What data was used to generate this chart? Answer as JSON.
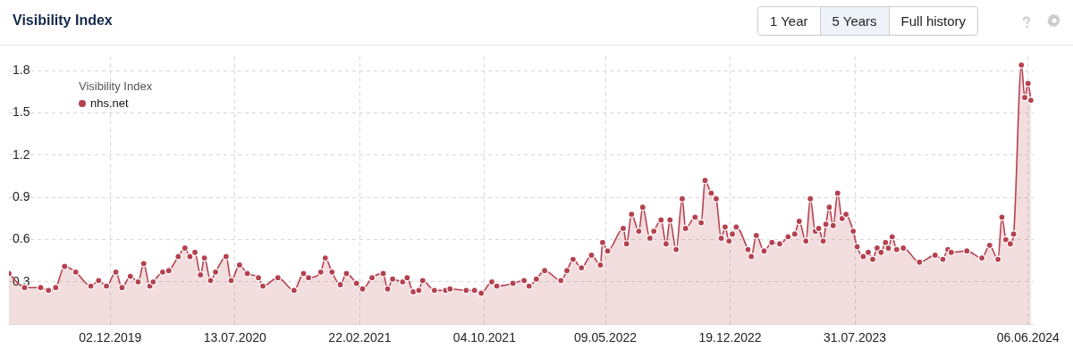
{
  "chart_data": {
    "type": "area",
    "title": "Visibility Index",
    "legend_title": "Visibility Index",
    "legend": "top left",
    "grid": true,
    "marker": "circle",
    "line_style": "solid",
    "annotations": [
      "1 Year",
      "5 Years",
      "Full history"
    ],
    "xlim": [
      "2019-06-03",
      "2024-06-16"
    ],
    "xticks": [
      {
        "value": "2019-12-02",
        "label": "02.12.2019"
      },
      {
        "value": "2020-07-13",
        "label": "13.07.2020"
      },
      {
        "value": "2021-02-22",
        "label": "22.02.2021"
      },
      {
        "value": "2021-10-04",
        "label": "04.10.2021"
      },
      {
        "value": "2022-05-09",
        "label": "09.05.2022"
      },
      {
        "value": "2022-12-19",
        "label": "19.12.2022"
      },
      {
        "value": "2023-07-31",
        "label": "31.07.2023"
      },
      {
        "value": "2024-06-06",
        "label": "06.06.2024"
      }
    ],
    "ylim": [
      0,
      1.9
    ],
    "yticks": [
      0.3,
      0.6,
      0.9,
      1.2,
      1.5,
      1.8
    ],
    "series": [
      {
        "name": "nhs.net",
        "color": "#b5414f",
        "x": [
          "2019-06-03",
          "2019-07-01",
          "2019-07-30",
          "2019-08-13",
          "2019-08-26",
          "2019-09-11",
          "2019-10-01",
          "2019-10-28",
          "2019-11-11",
          "2019-11-25",
          "2019-12-12",
          "2019-12-23",
          "2020-01-07",
          "2020-01-21",
          "2020-01-31",
          "2020-02-11",
          "2020-02-17",
          "2020-03-05",
          "2020-03-16",
          "2020-04-02",
          "2020-04-14",
          "2020-04-23",
          "2020-05-02",
          "2020-05-12",
          "2020-05-19",
          "2020-05-30",
          "2020-06-08",
          "2020-06-27",
          "2020-07-06",
          "2020-07-21",
          "2020-08-04",
          "2020-08-24",
          "2020-09-01",
          "2020-09-28",
          "2020-10-27",
          "2020-11-13",
          "2020-11-22",
          "2020-12-14",
          "2020-12-22",
          "2021-01-03",
          "2021-01-18",
          "2021-01-29",
          "2021-02-16",
          "2021-02-27",
          "2021-03-16",
          "2021-04-05",
          "2021-04-13",
          "2021-04-22",
          "2021-05-10",
          "2021-05-18",
          "2021-05-29",
          "2021-06-08",
          "2021-06-15",
          "2021-07-06",
          "2021-07-26",
          "2021-08-03",
          "2021-09-01",
          "2021-09-16",
          "2021-09-28",
          "2021-10-17",
          "2021-10-26",
          "2021-11-24",
          "2021-12-14",
          "2021-12-23",
          "2022-01-05",
          "2022-01-20",
          "2022-02-18",
          "2022-03-01",
          "2022-03-12",
          "2022-03-27",
          "2022-04-14",
          "2022-04-30",
          "2022-05-04",
          "2022-05-13",
          "2022-06-10",
          "2022-06-16",
          "2022-06-25",
          "2022-07-08",
          "2022-07-15",
          "2022-07-28",
          "2022-08-04",
          "2022-08-17",
          "2022-08-26",
          "2022-09-02",
          "2022-09-13",
          "2022-09-24",
          "2022-09-30",
          "2022-10-17",
          "2022-10-28",
          "2022-11-04",
          "2022-11-15",
          "2022-11-24",
          "2022-12-03",
          "2022-12-10",
          "2022-12-17",
          "2022-12-23",
          "2022-12-30",
          "2023-01-20",
          "2023-01-26",
          "2023-02-04",
          "2023-02-18",
          "2023-03-04",
          "2023-03-18",
          "2023-04-02",
          "2023-04-14",
          "2023-04-22",
          "2023-05-04",
          "2023-05-12",
          "2023-05-21",
          "2023-05-27",
          "2023-06-04",
          "2023-06-09",
          "2023-06-15",
          "2023-06-22",
          "2023-06-30",
          "2023-07-08",
          "2023-07-15",
          "2023-07-28",
          "2023-08-04",
          "2023-08-15",
          "2023-08-24",
          "2023-09-01",
          "2023-09-09",
          "2023-09-16",
          "2023-09-24",
          "2023-09-29",
          "2023-10-06",
          "2023-10-14",
          "2023-10-26",
          "2023-11-24",
          "2023-12-22",
          "2024-01-05",
          "2024-01-14",
          "2024-01-20",
          "2024-02-17",
          "2024-03-15",
          "2024-03-29",
          "2024-04-13",
          "2024-04-20",
          "2024-04-27",
          "2024-05-05",
          "2024-05-11",
          "2024-05-25",
          "2024-05-31",
          "2024-06-06",
          "2024-06-11"
        ],
        "values": [
          0.36,
          0.26,
          0.26,
          0.24,
          0.26,
          0.41,
          0.37,
          0.27,
          0.31,
          0.27,
          0.37,
          0.26,
          0.34,
          0.3,
          0.43,
          0.27,
          0.3,
          0.37,
          0.38,
          0.48,
          0.54,
          0.48,
          0.51,
          0.35,
          0.47,
          0.31,
          0.37,
          0.48,
          0.31,
          0.42,
          0.36,
          0.33,
          0.27,
          0.33,
          0.24,
          0.36,
          0.33,
          0.37,
          0.47,
          0.37,
          0.28,
          0.36,
          0.29,
          0.25,
          0.33,
          0.36,
          0.25,
          0.32,
          0.3,
          0.33,
          0.23,
          0.24,
          0.31,
          0.24,
          0.24,
          0.25,
          0.24,
          0.24,
          0.22,
          0.3,
          0.27,
          0.29,
          0.31,
          0.27,
          0.32,
          0.38,
          0.31,
          0.38,
          0.46,
          0.4,
          0.49,
          0.42,
          0.58,
          0.52,
          0.68,
          0.57,
          0.78,
          0.66,
          0.83,
          0.61,
          0.66,
          0.74,
          0.57,
          0.74,
          0.53,
          0.89,
          0.68,
          0.76,
          0.72,
          1.02,
          0.93,
          0.89,
          0.61,
          0.69,
          0.59,
          0.64,
          0.69,
          0.53,
          0.48,
          0.63,
          0.52,
          0.58,
          0.57,
          0.62,
          0.64,
          0.73,
          0.59,
          0.89,
          0.66,
          0.68,
          0.59,
          0.71,
          0.83,
          0.7,
          0.93,
          0.75,
          0.78,
          0.66,
          0.55,
          0.48,
          0.51,
          0.46,
          0.54,
          0.51,
          0.58,
          0.54,
          0.62,
          0.53,
          0.54,
          0.44,
          0.49,
          0.46,
          0.53,
          0.51,
          0.52,
          0.47,
          0.56,
          0.46,
          0.76,
          0.6,
          0.57,
          0.64,
          1.84,
          1.61,
          1.71,
          1.59
        ]
      }
    ]
  }
}
